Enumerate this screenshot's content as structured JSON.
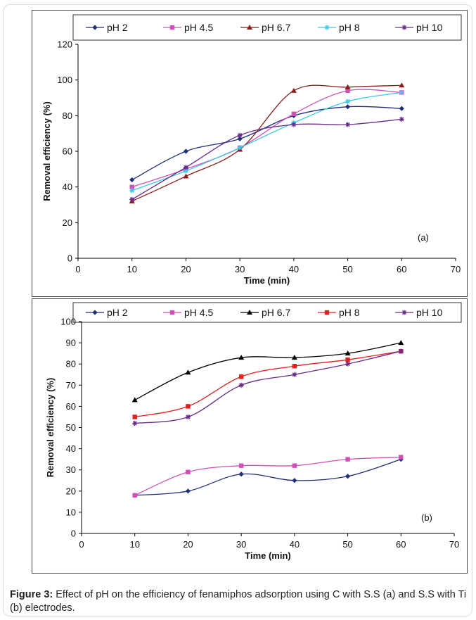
{
  "figure": {
    "caption_label": "Figure 3:",
    "caption_text": "Effect of pH on the efficiency of fenamiphos adsorption using C with S.S (a) and S.S with Ti (b) electrodes."
  },
  "chart_data": [
    {
      "type": "line",
      "panel_label": "(a)",
      "xlabel": "Time (min)",
      "ylabel": "Removal efficiency (%)",
      "xlim": [
        0,
        70
      ],
      "ylim": [
        0,
        120
      ],
      "xticks": [
        0,
        10,
        20,
        30,
        40,
        50,
        60,
        70
      ],
      "yticks": [
        0,
        20,
        40,
        60,
        80,
        100,
        120
      ],
      "x": [
        10,
        20,
        30,
        40,
        50,
        60
      ],
      "legend_position": "top",
      "series": [
        {
          "name": "pH 2",
          "color": "#1f2f7a",
          "marker": "diamond",
          "values": [
            44,
            60,
            67,
            80,
            85,
            84
          ]
        },
        {
          "name": "pH 4.5",
          "color": "#d050b8",
          "marker": "square",
          "values": [
            40,
            50,
            62,
            81,
            94,
            93
          ]
        },
        {
          "name": "pH 6.7",
          "color": "#8b1a1a",
          "marker": "triangle",
          "values": [
            32,
            46,
            61,
            94,
            96,
            97
          ]
        },
        {
          "name": "pH 8",
          "color": "#40c8e8",
          "marker": "star",
          "values": [
            38,
            49,
            62,
            76,
            88,
            93
          ]
        },
        {
          "name": "pH 10",
          "color": "#6a2a8a",
          "marker": "star",
          "values": [
            33,
            51,
            69,
            75,
            75,
            78
          ]
        }
      ]
    },
    {
      "type": "line",
      "panel_label": "(b)",
      "xlabel": "Time (min)",
      "ylabel": "Removal efficiency (%)",
      "xlim": [
        0,
        70
      ],
      "ylim": [
        0,
        100
      ],
      "xticks": [
        0,
        10,
        20,
        30,
        40,
        50,
        60,
        70
      ],
      "yticks": [
        0,
        10,
        20,
        30,
        40,
        50,
        60,
        70,
        80,
        90,
        100
      ],
      "x": [
        10,
        20,
        30,
        40,
        50,
        60
      ],
      "legend_position": "top",
      "series": [
        {
          "name": "pH 2",
          "color": "#1f2f7a",
          "marker": "diamond",
          "values": [
            18,
            20,
            28,
            25,
            27,
            35
          ]
        },
        {
          "name": "pH 4.5",
          "color": "#d050b8",
          "marker": "square",
          "values": [
            18,
            29,
            32,
            32,
            35,
            36
          ]
        },
        {
          "name": "pH 6.7",
          "color": "#000000",
          "marker": "triangle",
          "values": [
            63,
            76,
            83,
            83,
            85,
            90
          ]
        },
        {
          "name": "pH 8",
          "color": "#e02020",
          "marker": "square",
          "values": [
            55,
            60,
            74,
            79,
            82,
            86
          ]
        },
        {
          "name": "pH 10",
          "color": "#6a2a8a",
          "marker": "star",
          "values": [
            52,
            55,
            70,
            75,
            80,
            86
          ]
        }
      ]
    }
  ]
}
